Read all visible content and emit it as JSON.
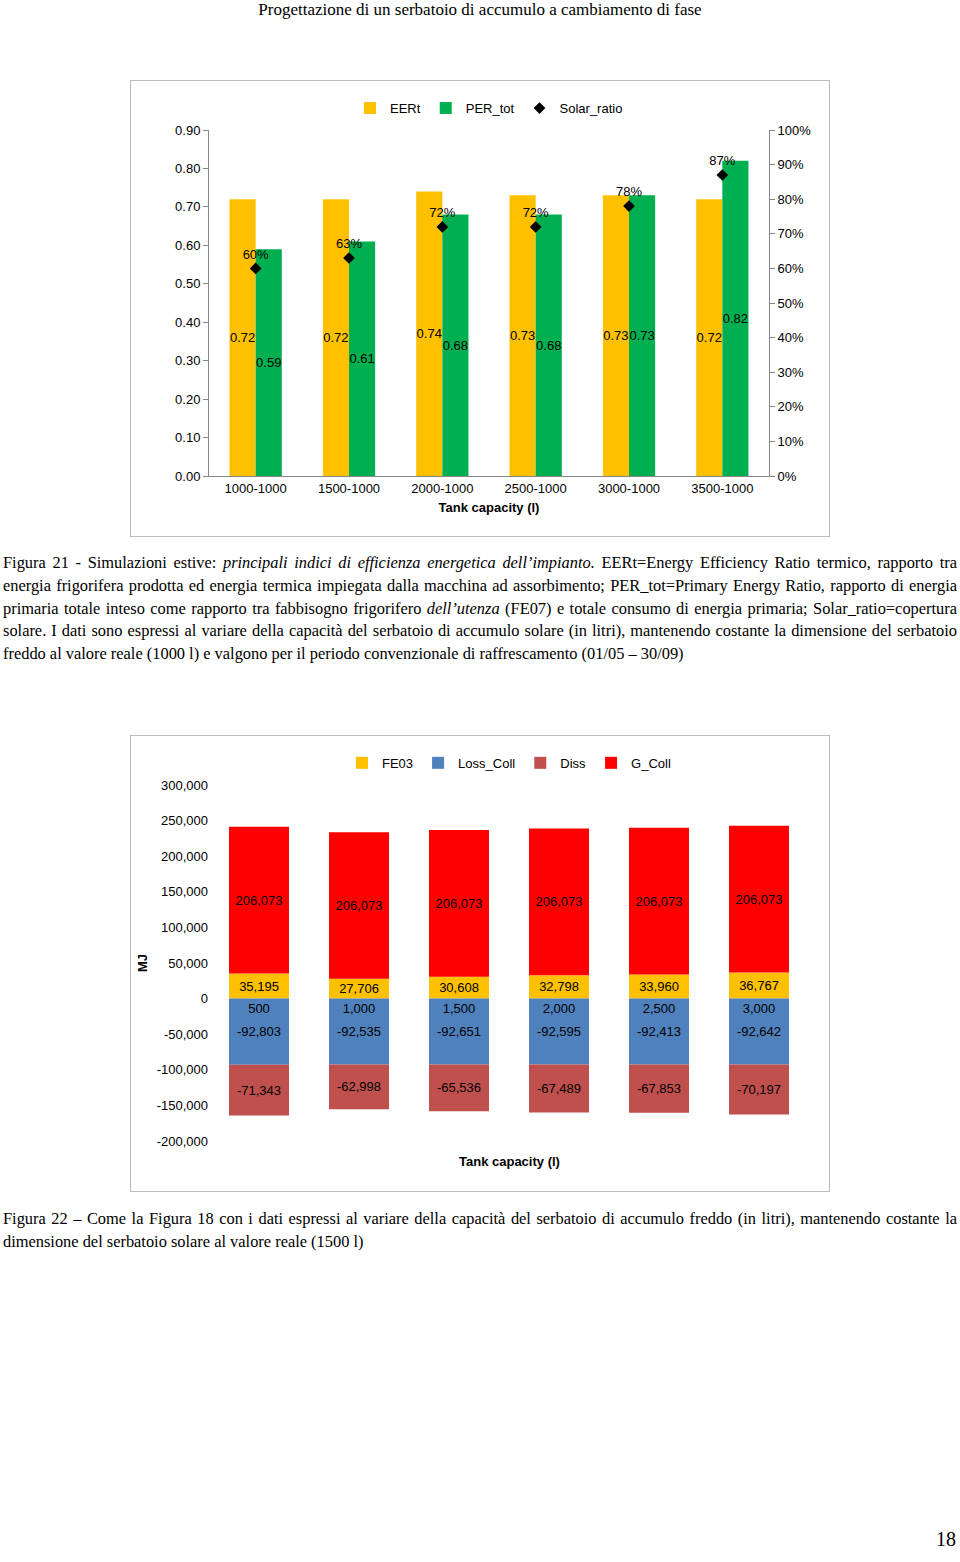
{
  "header": "Progettazione di un serbatoio di accumulo a cambiamento di fase",
  "chart_data": [
    {
      "type": "bar",
      "x_label": "Tank capacity (l)",
      "categories": [
        "1000-1000",
        "1500-1000",
        "2000-1000",
        "2500-1000",
        "3000-1000",
        "3500-1000"
      ],
      "series": [
        {
          "name": "EERt",
          "color": "#FFC000",
          "values": [
            0.72,
            0.72,
            0.74,
            0.73,
            0.73,
            0.72
          ]
        },
        {
          "name": "PER_tot",
          "color": "#00B050",
          "values": [
            0.59,
            0.61,
            0.68,
            0.68,
            0.73,
            0.82
          ]
        },
        {
          "name": "Solar_ratio",
          "type": "scatter",
          "marker": "diamond",
          "color": "#000000",
          "axis": "y2",
          "values": [
            60,
            63,
            72,
            72,
            78,
            87
          ],
          "value_labels": [
            "60%",
            "63%",
            "72%",
            "72%",
            "78%",
            "87%"
          ]
        }
      ],
      "ylim": [
        0,
        0.9
      ],
      "yticks": [
        {
          "value": 0,
          "label": "0.00"
        },
        {
          "value": 0.1,
          "label": "0.10"
        },
        {
          "value": 0.2,
          "label": "0.20"
        },
        {
          "value": 0.3,
          "label": "0.30"
        },
        {
          "value": 0.4,
          "label": "0.40"
        },
        {
          "value": 0.5,
          "label": "0.50"
        },
        {
          "value": 0.6,
          "label": "0.60"
        },
        {
          "value": 0.7,
          "label": "0.70"
        },
        {
          "value": 0.8,
          "label": "0.80"
        },
        {
          "value": 0.9,
          "label": "0.90"
        }
      ],
      "y2lim": [
        0,
        100
      ],
      "y2ticks": [
        {
          "value": 0,
          "label": "0%"
        },
        {
          "value": 10,
          "label": "10%"
        },
        {
          "value": 20,
          "label": "20%"
        },
        {
          "value": 30,
          "label": "30%"
        },
        {
          "value": 40,
          "label": "40%"
        },
        {
          "value": 50,
          "label": "50%"
        },
        {
          "value": 60,
          "label": "60%"
        },
        {
          "value": 70,
          "label": "70%"
        },
        {
          "value": 80,
          "label": "80%"
        },
        {
          "value": 90,
          "label": "90%"
        },
        {
          "value": 100,
          "label": "100%"
        }
      ],
      "data_labels": true,
      "legend": "top",
      "grid": false
    },
    {
      "type": "bar",
      "stacked": true,
      "x_label": "Tank capacity (l)",
      "y_label": "MJ",
      "categories": [
        "500",
        "1,000",
        "1,500",
        "2,000",
        "2,500",
        "3,000"
      ],
      "series": [
        {
          "name": "FE03",
          "color": "#FFC000",
          "values": [
            35195,
            27706,
            30608,
            32798,
            33960,
            36767
          ],
          "value_labels": [
            "35,195",
            "27,706",
            "30,608",
            "32,798",
            "33,960",
            "36,767"
          ]
        },
        {
          "name": "Loss_Coll",
          "color": "#4F81BD",
          "values": [
            -92803,
            -92535,
            -92651,
            -92595,
            -92413,
            -92642
          ],
          "value_labels": [
            "-92,803",
            "-92,535",
            "-92,651",
            "-92,595",
            "-92,413",
            "-92,642"
          ]
        },
        {
          "name": "Diss",
          "color": "#C0504D",
          "values": [
            -71343,
            -62998,
            -65536,
            -67489,
            -67853,
            -70197
          ],
          "value_labels": [
            "-71,343",
            "-62,998",
            "-65,536",
            "-67,489",
            "-67,853",
            "-70,197"
          ]
        },
        {
          "name": "G_Coll",
          "color": "#FF0000",
          "values": [
            206073,
            206073,
            206073,
            206073,
            206073,
            206073
          ],
          "value_labels": [
            "206,073",
            "206,073",
            "206,073",
            "206,073",
            "206,073",
            "206,073"
          ]
        }
      ],
      "ylim": [
        -200000,
        300000
      ],
      "yticks": [
        {
          "value": -200000,
          "label": "-200,000"
        },
        {
          "value": -150000,
          "label": "-150,000"
        },
        {
          "value": -100000,
          "label": "-100,000"
        },
        {
          "value": -50000,
          "label": "-50,000"
        },
        0,
        {
          "value": 50000,
          "label": "50,000"
        },
        {
          "value": 100000,
          "label": "100,000"
        },
        {
          "value": 150000,
          "label": "150,000"
        },
        {
          "value": 200000,
          "label": "200,000"
        },
        {
          "value": 250000,
          "label": "250,000"
        },
        {
          "value": 300000,
          "label": "300,000"
        }
      ],
      "data_labels": true,
      "legend": "top",
      "grid": false
    }
  ],
  "captions": [
    [
      {
        "text": "Figura 21 - Simulazioni estive: "
      },
      {
        "text": "principali indici di efficienza energetica dell’impianto.",
        "italic": true
      },
      {
        "text": " EERt=Energy Efficiency Ratio termico, rapporto tra energia frigorifera prodotta ed energia termica impiegata dalla macchina ad assorbimento; PER_tot=Primary Energy Ratio, rapporto di energia primaria totale inteso come rapporto tra fabbisogno frigorifero "
      },
      {
        "text": "dell’utenza",
        "italic": true
      },
      {
        "text": " (FE07) e totale consumo di energia primaria; Solar_ratio=copertura solare. I dati sono espressi al variare della capacità del serbatoio di accumulo solare (in litri), mantenendo costante la dimensione del serbatoio freddo al valore reale (1000 l) e valgono per il periodo convenzionale di raffrescamento (01/05 – 30/09)"
      }
    ],
    [
      {
        "text": "Figura 22 – Come la Figura 18 con i dati espressi al variare della capacità del serbatoio di accumulo freddo (in litri), mantenendo costante la dimensione del serbatoio solare al valore reale (1500 l)"
      }
    ]
  ],
  "page_number": "18"
}
